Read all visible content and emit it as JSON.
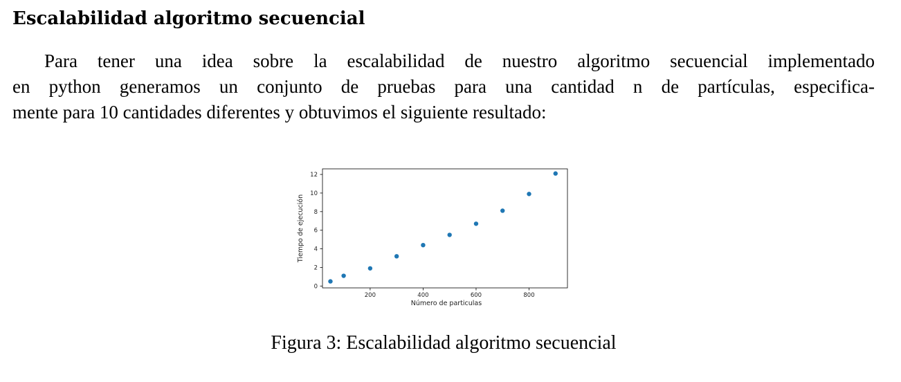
{
  "section": {
    "title": "Escalabilidad algoritmo secuencial"
  },
  "paragraph": {
    "lines": [
      "Para tener una idea sobre la escalabilidad de nuestro algoritmo secuencial implementado",
      "en python generamos un conjunto de pruebas para una cantidad n de partículas, especifica-",
      "mente para 10 cantidades diferentes y obtuvimos el siguiente resultado:"
    ]
  },
  "figure": {
    "caption": "Figura 3: Escalabilidad algoritmo secuencial"
  },
  "chart_data": {
    "type": "scatter",
    "title": "",
    "xlabel": "Número de particulas",
    "ylabel": "Tiempo de ejecución",
    "x": [
      50,
      100,
      200,
      300,
      400,
      500,
      600,
      700,
      800,
      900
    ],
    "y": [
      0.5,
      1.1,
      1.9,
      3.2,
      4.4,
      5.5,
      6.7,
      8.1,
      9.9,
      12.1
    ],
    "xlim": [
      20,
      945
    ],
    "ylim": [
      -0.2,
      12.6
    ],
    "xticks": [
      200,
      400,
      600,
      800
    ],
    "yticks": [
      0,
      2,
      4,
      6,
      8,
      10,
      12
    ],
    "xtick_labels": [
      "200",
      "400",
      "600",
      "800"
    ],
    "ytick_labels": [
      "0",
      "2",
      "4",
      "6",
      "8",
      "10",
      "12"
    ],
    "grid": false,
    "marker_color": "#1f77b4",
    "axis_color": "#000000"
  }
}
